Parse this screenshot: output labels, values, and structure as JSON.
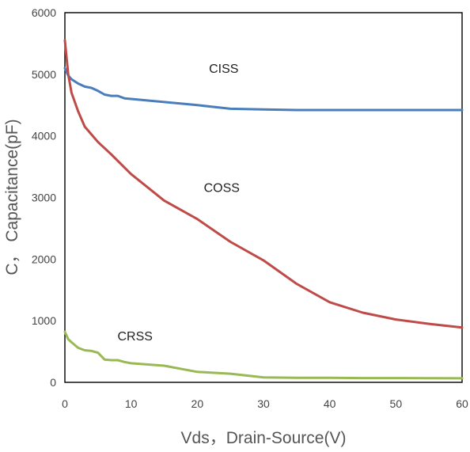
{
  "chart_data": {
    "type": "line",
    "xlabel": "Vds，Drain-Source(V)",
    "ylabel": "C， Capacitance(pF)",
    "xlim": [
      0,
      60
    ],
    "ylim": [
      0,
      6000
    ],
    "x_ticks": [
      "0",
      "10",
      "20",
      "30",
      "40",
      "50",
      "60"
    ],
    "y_ticks": [
      "0",
      "1000",
      "2000",
      "3000",
      "4000",
      "5000",
      "6000"
    ],
    "grid": false,
    "series": [
      {
        "name": "CISS",
        "color": "#4a7ebb",
        "points": [
          [
            0,
            5100
          ],
          [
            0.5,
            4980
          ],
          [
            1,
            4920
          ],
          [
            2,
            4850
          ],
          [
            3,
            4800
          ],
          [
            4,
            4780
          ],
          [
            5,
            4730
          ],
          [
            6,
            4670
          ],
          [
            7,
            4650
          ],
          [
            8,
            4650
          ],
          [
            9,
            4610
          ],
          [
            10,
            4600
          ],
          [
            15,
            4550
          ],
          [
            20,
            4500
          ],
          [
            25,
            4440
          ],
          [
            30,
            4430
          ],
          [
            35,
            4420
          ],
          [
            40,
            4420
          ],
          [
            45,
            4420
          ],
          [
            50,
            4420
          ],
          [
            55,
            4420
          ],
          [
            60,
            4420
          ]
        ]
      },
      {
        "name": "COSS",
        "color": "#be4b48",
        "points": [
          [
            0,
            5550
          ],
          [
            0.5,
            5000
          ],
          [
            1,
            4700
          ],
          [
            2,
            4400
          ],
          [
            3,
            4150
          ],
          [
            5,
            3900
          ],
          [
            7,
            3700
          ],
          [
            10,
            3380
          ],
          [
            15,
            2950
          ],
          [
            20,
            2650
          ],
          [
            25,
            2280
          ],
          [
            30,
            1980
          ],
          [
            35,
            1600
          ],
          [
            40,
            1300
          ],
          [
            45,
            1130
          ],
          [
            50,
            1020
          ],
          [
            55,
            950
          ],
          [
            60,
            890
          ]
        ]
      },
      {
        "name": "CRSS",
        "color": "#98b954",
        "points": [
          [
            0,
            820
          ],
          [
            0.5,
            700
          ],
          [
            1,
            650
          ],
          [
            2,
            560
          ],
          [
            3,
            520
          ],
          [
            4,
            510
          ],
          [
            5,
            480
          ],
          [
            6,
            370
          ],
          [
            7,
            360
          ],
          [
            8,
            360
          ],
          [
            9,
            330
          ],
          [
            10,
            310
          ],
          [
            15,
            270
          ],
          [
            20,
            170
          ],
          [
            25,
            140
          ],
          [
            30,
            80
          ],
          [
            35,
            75
          ],
          [
            40,
            75
          ],
          [
            45,
            70
          ],
          [
            50,
            70
          ],
          [
            55,
            68
          ],
          [
            60,
            65
          ]
        ]
      }
    ],
    "annotations": [
      {
        "text": "CISS",
        "x": 24,
        "y": 5100
      },
      {
        "text": "COSS",
        "x": 23.7,
        "y": 3170
      },
      {
        "text": "CRSS",
        "x": 10.6,
        "y": 760
      }
    ]
  }
}
